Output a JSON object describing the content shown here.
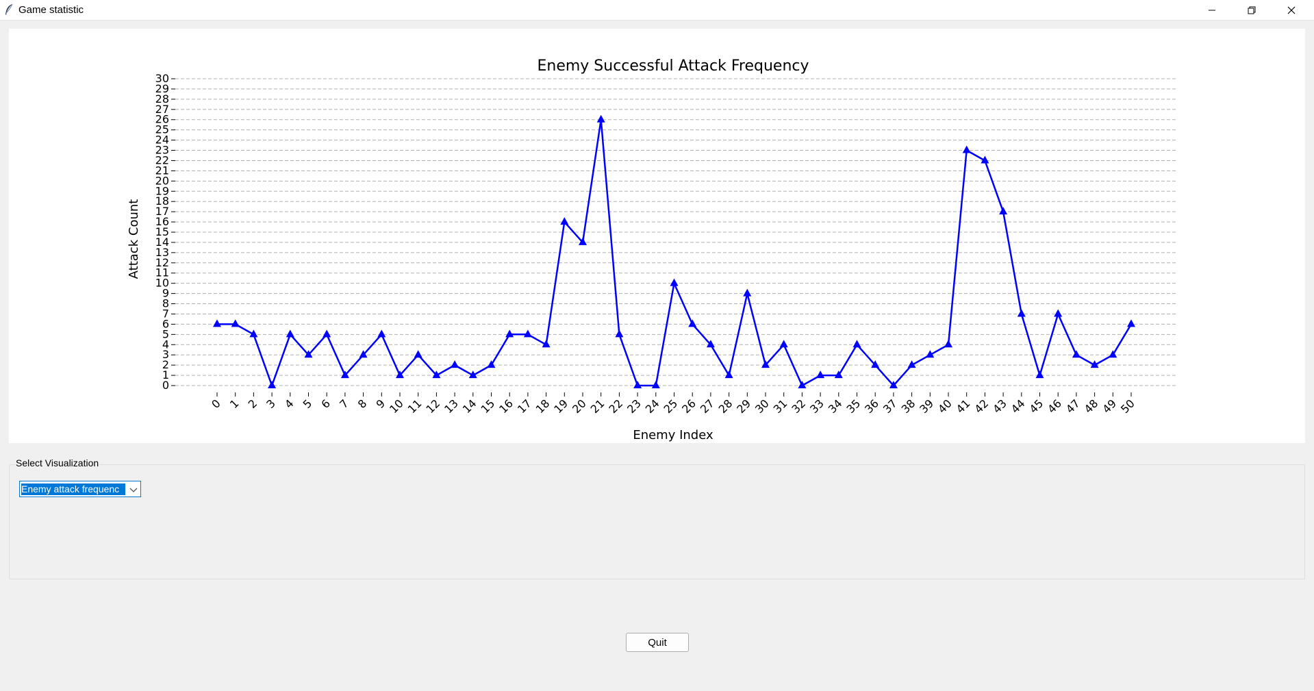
{
  "window": {
    "title": "Game statistic"
  },
  "controls": {
    "group_label": "Select Visualization",
    "combo_value": "Enemy attack frequenc",
    "quit_label": "Quit"
  },
  "colors": {
    "series": "#0000ff",
    "selection": "#0078d7"
  },
  "icons": {
    "app": "feather-icon",
    "minimize": "minimize-icon",
    "maximize": "restore-icon",
    "close": "close-icon",
    "dropdown": "chevron-down-icon"
  },
  "chart_data": {
    "type": "line",
    "title": "Enemy Successful Attack Frequency",
    "xlabel": "Enemy Index",
    "ylabel": "Attack Count",
    "x": [
      0,
      1,
      2,
      3,
      4,
      5,
      6,
      7,
      8,
      9,
      10,
      11,
      12,
      13,
      14,
      15,
      16,
      17,
      18,
      19,
      20,
      21,
      22,
      23,
      24,
      25,
      26,
      27,
      28,
      29,
      30,
      31,
      32,
      33,
      34,
      35,
      36,
      37,
      38,
      39,
      40,
      41,
      42,
      43,
      44,
      45,
      46,
      47,
      48,
      49,
      50
    ],
    "values": [
      6,
      6,
      5,
      0,
      5,
      3,
      5,
      1,
      3,
      5,
      1,
      3,
      1,
      2,
      1,
      2,
      5,
      5,
      4,
      16,
      14,
      26,
      5,
      0,
      0,
      10,
      6,
      4,
      1,
      9,
      2,
      4,
      0,
      1,
      1,
      4,
      2,
      0,
      2,
      3,
      4,
      23,
      22,
      17,
      7,
      1,
      7,
      3,
      2,
      3,
      6
    ],
    "ylim": [
      0,
      30
    ],
    "yticks": [
      0,
      1,
      2,
      3,
      4,
      5,
      6,
      7,
      8,
      9,
      10,
      11,
      12,
      13,
      14,
      15,
      16,
      17,
      18,
      19,
      20,
      21,
      22,
      23,
      24,
      25,
      26,
      27,
      28,
      29,
      30
    ],
    "marker": "triangle-up",
    "grid": "horizontal dashed"
  }
}
